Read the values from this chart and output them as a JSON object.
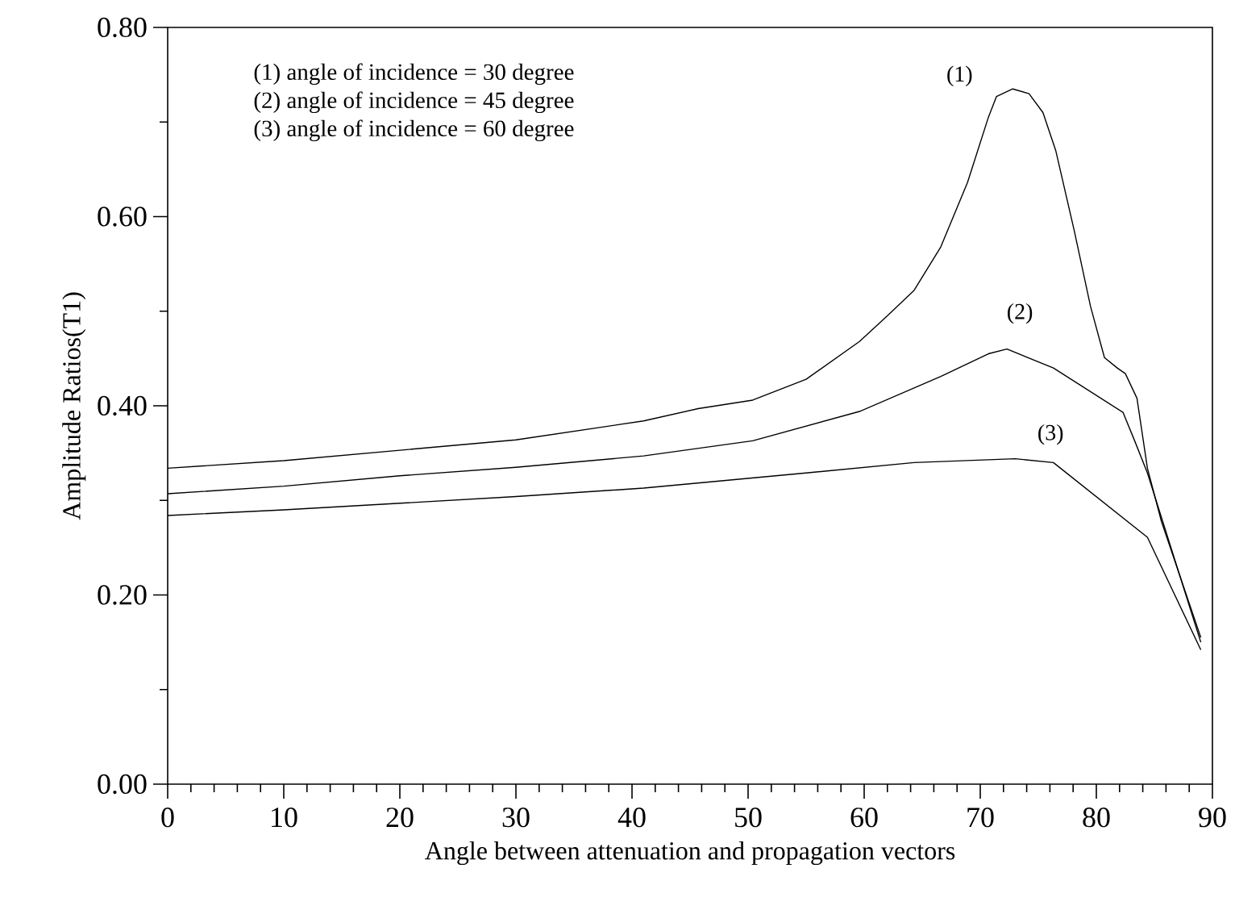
{
  "chart_data": {
    "type": "line",
    "xlabel": "Angle between attenuation and propagation vectors",
    "ylabel": "Amplitude Ratios(T1)",
    "xlim": [
      0,
      90
    ],
    "ylim": [
      0,
      0.8
    ],
    "xticks": [
      0,
      {
        "value": 2,
        "label": null
      },
      {
        "value": 4,
        "label": null
      },
      {
        "value": 6,
        "label": null
      },
      {
        "value": 8,
        "label": null
      },
      10,
      {
        "value": 12,
        "label": null
      },
      {
        "value": 14,
        "label": null
      },
      {
        "value": 16,
        "label": null
      },
      {
        "value": 18,
        "label": null
      },
      20,
      {
        "value": 22,
        "label": null
      },
      {
        "value": 24,
        "label": null
      },
      {
        "value": 26,
        "label": null
      },
      {
        "value": 28,
        "label": null
      },
      30,
      {
        "value": 32,
        "label": null
      },
      {
        "value": 34,
        "label": null
      },
      {
        "value": 36,
        "label": null
      },
      {
        "value": 38,
        "label": null
      },
      40,
      {
        "value": 42,
        "label": null
      },
      {
        "value": 44,
        "label": null
      },
      {
        "value": 46,
        "label": null
      },
      {
        "value": 48,
        "label": null
      },
      50,
      {
        "value": 52,
        "label": null
      },
      {
        "value": 54,
        "label": null
      },
      {
        "value": 56,
        "label": null
      },
      {
        "value": 58,
        "label": null
      },
      60,
      {
        "value": 62,
        "label": null
      },
      {
        "value": 64,
        "label": null
      },
      {
        "value": 66,
        "label": null
      },
      {
        "value": 68,
        "label": null
      },
      70,
      {
        "value": 72,
        "label": null
      },
      {
        "value": 74,
        "label": null
      },
      {
        "value": 76,
        "label": null
      },
      {
        "value": 78,
        "label": null
      },
      80,
      {
        "value": 82,
        "label": null
      },
      {
        "value": 84,
        "label": null
      },
      {
        "value": 86,
        "label": null
      },
      {
        "value": 88,
        "label": null
      },
      90
    ],
    "yticks": [
      {
        "value": 0,
        "label": "0.00"
      },
      {
        "value": 0.1,
        "label": null
      },
      {
        "value": 0.2,
        "label": "0.20"
      },
      {
        "value": 0.3,
        "label": null
      },
      {
        "value": 0.4,
        "label": "0.40"
      },
      {
        "value": 0.5,
        "label": null
      },
      {
        "value": 0.6,
        "label": "0.60"
      },
      {
        "value": 0.7,
        "label": null
      },
      {
        "value": 0.8,
        "label": "0.80"
      }
    ],
    "series": [
      {
        "color": "#000000",
        "x": [
          0,
          10,
          20,
          30,
          41,
          45.7,
          50.4,
          55,
          59.6,
          61.9,
          64.3,
          66.6,
          68.9,
          70.7,
          71.4,
          72.8,
          74.2,
          75.4,
          76.5,
          78.1,
          79.5,
          80.7,
          81.8,
          82.5,
          83.5,
          84.4,
          85.6,
          89
        ],
        "values": [
          0.334,
          0.342,
          0.353,
          0.364,
          0.384,
          0.397,
          0.406,
          0.428,
          0.468,
          0.494,
          0.522,
          0.568,
          0.636,
          0.705,
          0.727,
          0.735,
          0.73,
          0.71,
          0.67,
          0.585,
          0.505,
          0.451,
          0.44,
          0.434,
          0.408,
          0.334,
          0.278,
          0.155
        ]
      },
      {
        "color": "#000000",
        "x": [
          0,
          10,
          20,
          30,
          41,
          50.4,
          59.6,
          66.6,
          70.7,
          72.3,
          76.3,
          82.3,
          83.3,
          84.4,
          89
        ],
        "values": [
          0.307,
          0.315,
          0.326,
          0.335,
          0.347,
          0.363,
          0.394,
          0.431,
          0.455,
          0.46,
          0.44,
          0.393,
          0.363,
          0.329,
          0.15
        ]
      },
      {
        "color": "#000000",
        "x": [
          0,
          10,
          20,
          30,
          41,
          55,
          64.3,
          73,
          76.3,
          84.4,
          89
        ],
        "values": [
          0.284,
          0.29,
          0.297,
          0.304,
          0.313,
          0.329,
          0.34,
          0.344,
          0.34,
          0.261,
          0.142
        ]
      }
    ],
    "annotations": [
      "(1) angle of incidence = 30 degree",
      "(2) angle of incidence = 45 degree",
      "(3) angle of incidence = 60 degree",
      "(1)",
      "(2)",
      "(3)"
    ]
  }
}
